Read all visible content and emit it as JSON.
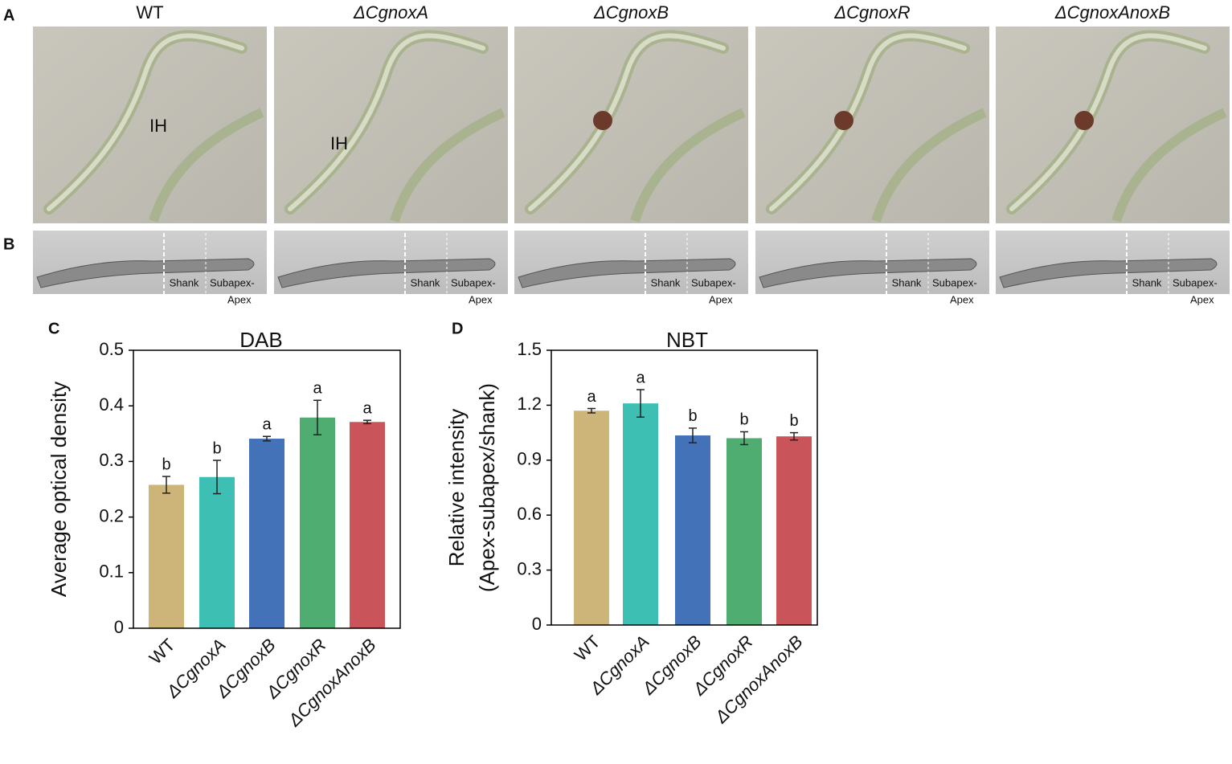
{
  "panel_labels": [
    "A",
    "B",
    "C",
    "D"
  ],
  "strains": [
    "WT",
    "ΔCgnoxA",
    "ΔCgnoxB",
    "ΔCgnoxR",
    "ΔCgnoxAnoxB"
  ],
  "image_annotation": "IH",
  "region_labels": [
    "Shank",
    "Subapex-",
    "Apex"
  ],
  "chart_data": [
    {
      "type": "bar",
      "title": "DAB",
      "ylabel": [
        "Average optical density"
      ],
      "categories": [
        "WT",
        "ΔCgnoxA",
        "ΔCgnoxB",
        "ΔCgnoxR",
        "ΔCgnoxAnoxB"
      ],
      "values": [
        0.258,
        0.272,
        0.341,
        0.379,
        0.371
      ],
      "errors": [
        0.015,
        0.03,
        0.004,
        0.031,
        0.003
      ],
      "annotations": [
        "b",
        "b",
        "a",
        "a",
        "a"
      ],
      "colors": [
        "#cdb57a",
        "#3dbfb3",
        "#4472b8",
        "#4fad72",
        "#c9545a"
      ],
      "ylim": [
        0,
        0.5
      ],
      "yticks": [
        0,
        0.1,
        0.2,
        0.3,
        0.4,
        0.5
      ]
    },
    {
      "type": "bar",
      "title": "NBT",
      "ylabel": [
        "Relative intensity",
        "(Apex-subapex/shank)"
      ],
      "categories": [
        "WT",
        "ΔCgnoxA",
        "ΔCgnoxB",
        "ΔCgnoxR",
        "ΔCgnoxAnoxB"
      ],
      "values": [
        1.17,
        1.21,
        1.035,
        1.02,
        1.03
      ],
      "errors": [
        0.012,
        0.075,
        0.04,
        0.035,
        0.02
      ],
      "annotations": [
        "a",
        "a",
        "b",
        "b",
        "b"
      ],
      "colors": [
        "#cdb57a",
        "#3dbfb3",
        "#4472b8",
        "#4fad72",
        "#c9545a"
      ],
      "ylim": [
        0,
        1.5
      ],
      "yticks": [
        0,
        0.3,
        0.6,
        0.9,
        1.2,
        1.5
      ]
    }
  ]
}
